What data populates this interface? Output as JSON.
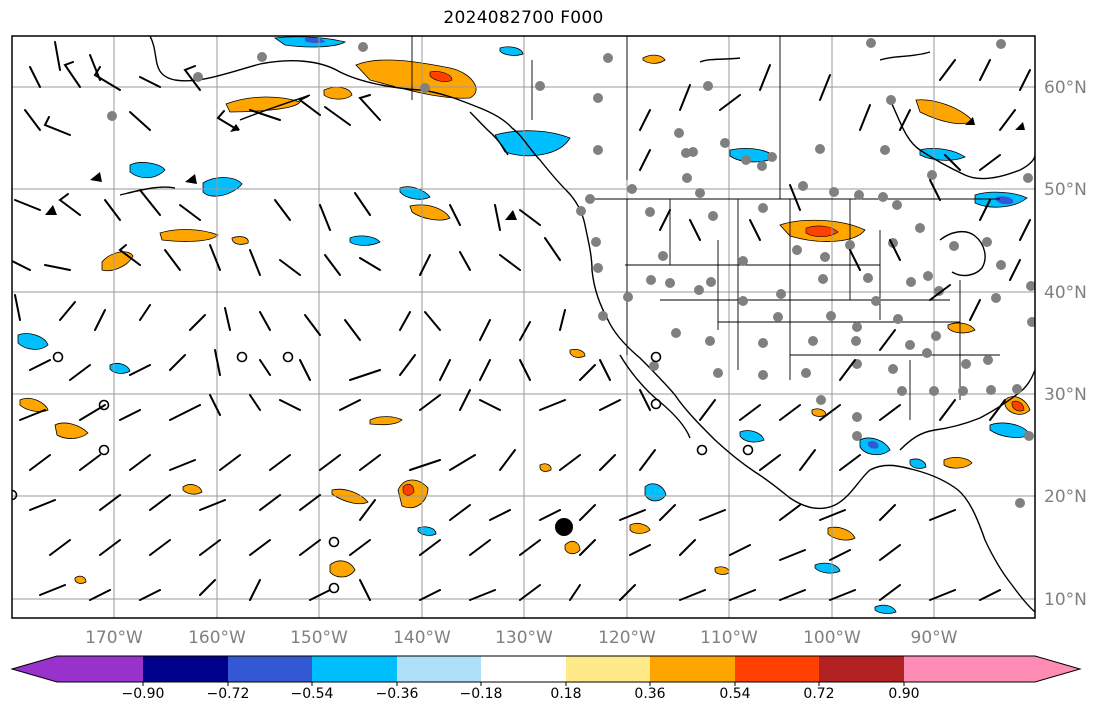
{
  "title": "2024082700 F000",
  "lon_labels": [
    "170°W",
    "160°W",
    "150°W",
    "140°W",
    "130°W",
    "120°W",
    "110°W",
    "100°W",
    "90°W"
  ],
  "lat_labels": [
    "60°N",
    "50°N",
    "40°N",
    "30°N",
    "20°N",
    "10°N"
  ],
  "colorbar": {
    "colors": [
      "#9932cc",
      "#00008b",
      "#3358d4",
      "#00bfff",
      "#aee0fa",
      "#ffffff",
      "#ffea8a",
      "#ffa500",
      "#ff4000",
      "#b22222",
      "#ff8cb4"
    ],
    "tick_labels": [
      "−0.90",
      "−0.72",
      "−0.54",
      "−0.36",
      "−0.18",
      "0.18",
      "0.36",
      "0.54",
      "0.72",
      "0.90"
    ]
  },
  "colors": {
    "grid": "#9a9a9a",
    "coast": "#000000",
    "station": "#808080"
  },
  "marker": "black-dot-storm-marker"
}
